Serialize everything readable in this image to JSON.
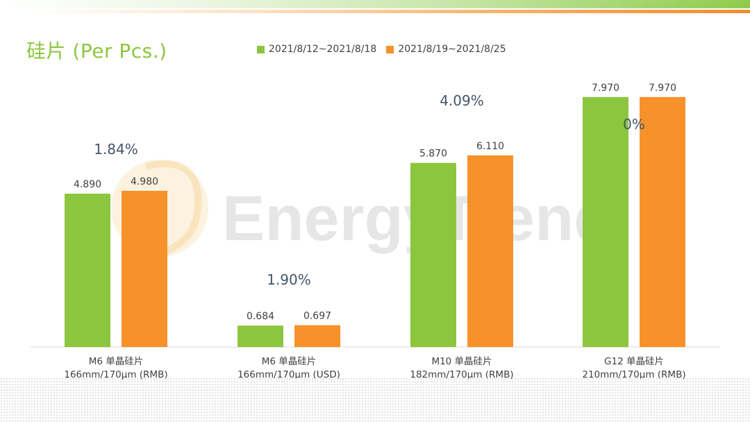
{
  "title": "硅片 (Per Pcs.)",
  "watermark_text": "EnergyTrend",
  "colors": {
    "series1": "#8cc63f",
    "series2": "#f7922b",
    "accent": "#8cc63f"
  },
  "chart_data": {
    "type": "bar",
    "title": "硅片 (Per Pcs.)",
    "xlabel": "",
    "ylabel": "",
    "ylim": [
      0,
      8.5
    ],
    "grid": false,
    "legend_placement": "top",
    "categories": [
      [
        "M6 单晶硅片",
        "166mm/170μm (RMB)"
      ],
      [
        "M6 单晶硅片",
        "166mm/170μm (USD)"
      ],
      [
        "M10 单晶硅片",
        "182mm/170μm (RMB)"
      ],
      [
        "G12 单晶硅片",
        "210mm/170μm  (RMB)"
      ]
    ],
    "series": [
      {
        "name": "2021/8/12~2021/8/18",
        "values": [
          4.89,
          0.684,
          5.87,
          7.97
        ],
        "labels": [
          "4.890",
          "0.684",
          "5.870",
          "7.970"
        ]
      },
      {
        "name": "2021/8/19~2021/8/25",
        "values": [
          4.98,
          0.697,
          6.11,
          7.97
        ],
        "labels": [
          "4.980",
          "0.697",
          "6.110",
          "7.970"
        ]
      }
    ],
    "annotations": [
      "1.84%",
      "1.90%",
      "4.09%",
      "0%"
    ]
  }
}
